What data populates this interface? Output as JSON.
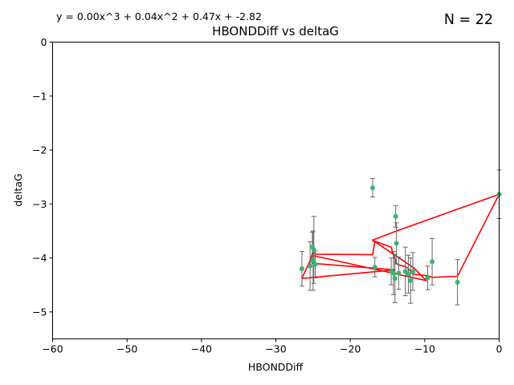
{
  "header": {
    "equation": "y = 0.00x^3 + 0.04x^2 + 0.47x + -2.82",
    "n_label": "N = 22"
  },
  "chart_data": {
    "type": "scatter",
    "title": "HBONDDiff vs deltaG",
    "xlabel": "HBONDDiff",
    "ylabel": "deltaG",
    "xlim": [
      -60,
      0
    ],
    "ylim": [
      -5.5,
      0
    ],
    "xticks": [
      -60,
      -50,
      -40,
      -30,
      -20,
      -10,
      0
    ],
    "yticks": [
      0,
      -1,
      -2,
      -3,
      -4,
      -5
    ],
    "xtick_labels": [
      "−60",
      "−50",
      "−40",
      "−30",
      "−20",
      "−10",
      "0"
    ],
    "ytick_labels": [
      "0",
      "−1",
      "−2",
      "−3",
      "−4",
      "−5"
    ],
    "grid": false,
    "point_color": "#3cb371",
    "errorbar_color": "#666666",
    "fit_color": "#ff0000",
    "points": [
      {
        "x": -26.5,
        "y": -4.2,
        "err": 0.32
      },
      {
        "x": -25.4,
        "y": -4.15,
        "err": 0.45
      },
      {
        "x": -25.1,
        "y": -3.8,
        "err": 0.28
      },
      {
        "x": -25.0,
        "y": -4.05,
        "err": 0.55
      },
      {
        "x": -24.9,
        "y": -3.85,
        "err": 0.62
      },
      {
        "x": -24.7,
        "y": -4.12,
        "err": 0.25
      },
      {
        "x": -17.0,
        "y": -2.7,
        "err": 0.17
      },
      {
        "x": -16.7,
        "y": -4.17,
        "err": 0.18
      },
      {
        "x": -14.5,
        "y": -4.25,
        "err": 0.25
      },
      {
        "x": -14.2,
        "y": -4.28,
        "err": 0.4
      },
      {
        "x": -14.0,
        "y": -4.38,
        "err": 0.45
      },
      {
        "x": -13.9,
        "y": -3.23,
        "err": 0.2
      },
      {
        "x": -13.8,
        "y": -3.73,
        "err": 0.38
      },
      {
        "x": -13.5,
        "y": -4.28,
        "err": 0.3
      },
      {
        "x": -12.6,
        "y": -4.25,
        "err": 0.45
      },
      {
        "x": -12.2,
        "y": -4.3,
        "err": 0.35
      },
      {
        "x": -11.9,
        "y": -4.42,
        "err": 0.42
      },
      {
        "x": -11.6,
        "y": -4.25,
        "err": 0.35
      },
      {
        "x": -9.6,
        "y": -4.37,
        "err": 0.22
      },
      {
        "x": -9.0,
        "y": -4.07,
        "err": 0.43
      },
      {
        "x": -5.6,
        "y": -4.45,
        "err": 0.42
      },
      {
        "x": 0.0,
        "y": -2.82,
        "err": 0.45
      }
    ],
    "fit_line_x": [
      -26.5,
      -25.4,
      -25.1,
      -25.0,
      -24.9,
      -24.7,
      -17.0,
      -16.7,
      -14.5,
      -14.2,
      -14.0,
      -13.9,
      -13.8,
      -13.5,
      -12.6,
      -12.2,
      -11.9,
      -11.6,
      -9.6,
      -9.0,
      -5.6,
      0.0,
      -13.8,
      -17.0,
      -11.5,
      -9.8,
      -24.9,
      -25.1,
      -14.0,
      -26.5
    ],
    "fit_line_y": [
      -4.38,
      -4.05,
      -3.92,
      -3.88,
      -3.9,
      -3.93,
      -3.94,
      -3.69,
      -3.8,
      -3.95,
      -4.02,
      -4.08,
      -4.1,
      -4.13,
      -4.16,
      -4.2,
      -4.25,
      -4.3,
      -4.33,
      -4.36,
      -4.34,
      -2.82,
      -3.5,
      -3.67,
      -4.18,
      -4.42,
      -3.96,
      -4.1,
      -4.22,
      -4.38
    ]
  }
}
